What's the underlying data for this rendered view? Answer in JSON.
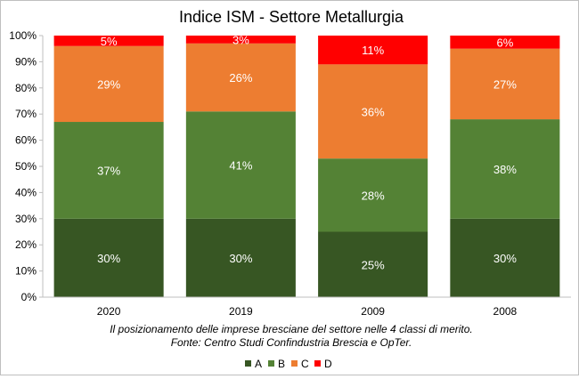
{
  "chart_data": {
    "type": "bar",
    "stacked": true,
    "percent_stacked": true,
    "title": "Indice ISM - Settore Metallurgia",
    "categories": [
      "2020",
      "2019",
      "2009",
      "2008"
    ],
    "series": [
      {
        "name": "A",
        "color": "#375623",
        "values": [
          30,
          30,
          25,
          30
        ],
        "labels": [
          "30%",
          "30%",
          "25%",
          "30%"
        ]
      },
      {
        "name": "B",
        "color": "#548235",
        "values": [
          37,
          41,
          28,
          38
        ],
        "labels": [
          "37%",
          "41%",
          "28%",
          "38%"
        ]
      },
      {
        "name": "C",
        "color": "#ed7d31",
        "values": [
          29,
          26,
          36,
          27
        ],
        "labels": [
          "29%",
          "26%",
          "36%",
          "27%"
        ]
      },
      {
        "name": "D",
        "color": "#ff0000",
        "values": [
          5,
          3,
          11,
          6
        ],
        "labels": [
          "5%",
          "3%",
          "11%",
          "6%"
        ]
      }
    ],
    "ylim": [
      0,
      100
    ],
    "yticks": [
      0,
      10,
      20,
      30,
      40,
      50,
      60,
      70,
      80,
      90,
      100
    ],
    "ytick_labels": [
      "0%",
      "10%",
      "20%",
      "30%",
      "40%",
      "50%",
      "60%",
      "70%",
      "80%",
      "90%",
      "100%"
    ],
    "grid": false,
    "legend_position": "bottom",
    "caption_lines": [
      "Il posizionamento delle imprese bresciane del settore nelle 4 classi di merito.",
      "Fonte: Centro Studi Confindustria Brescia e OpTer."
    ]
  }
}
